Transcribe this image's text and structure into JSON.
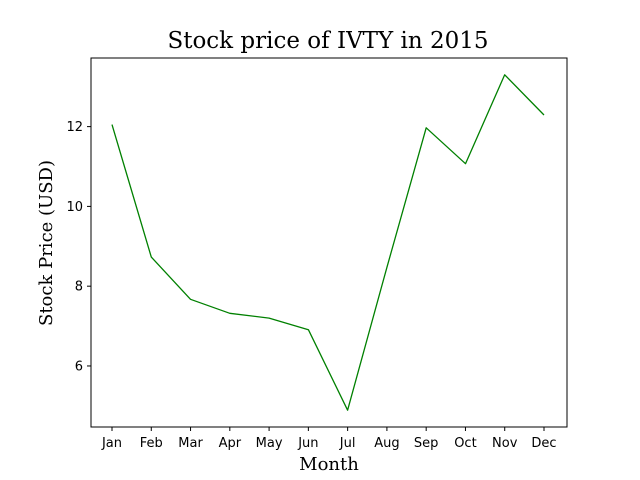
{
  "chart_data": {
    "type": "line",
    "title": "Stock price of IVTY in 2015",
    "xlabel": "Month",
    "ylabel": "Stock Price (USD)",
    "categories": [
      "Jan",
      "Feb",
      "Mar",
      "Apr",
      "May",
      "Jun",
      "Jul",
      "Aug",
      "Sep",
      "Oct",
      "Nov",
      "Dec"
    ],
    "series": [
      {
        "values": [
          12.05,
          8.73,
          7.67,
          7.32,
          7.2,
          6.91,
          4.89,
          8.47,
          11.97,
          11.07,
          13.3,
          12.29
        ],
        "color": "#008000"
      }
    ],
    "yticks": [
      6,
      8,
      10,
      12
    ],
    "ylim": [
      4.47,
      13.72
    ],
    "grid": false,
    "legend": "none"
  }
}
